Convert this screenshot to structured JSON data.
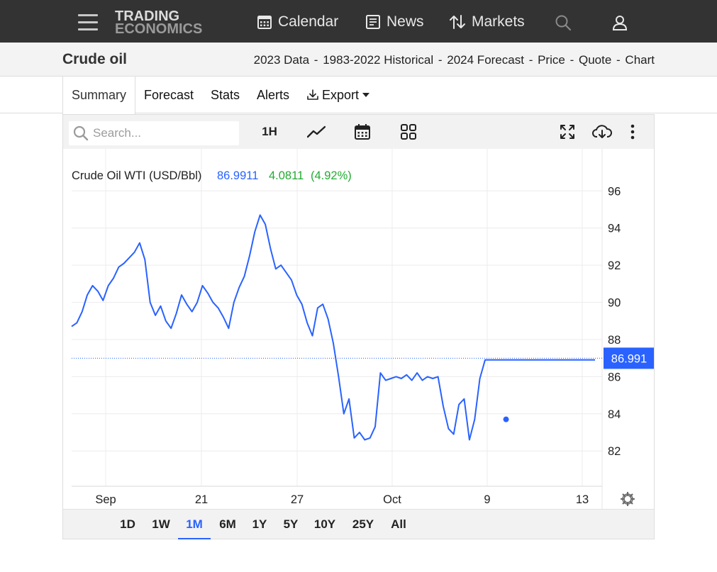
{
  "nav": {
    "logo_line1": "TRADING",
    "logo_line2": "ECONOMICS",
    "calendar": "Calendar",
    "news": "News",
    "markets": "Markets"
  },
  "title_bar": {
    "title": "Crude oil",
    "links": [
      "2023 Data",
      "1983-2022 Historical",
      "2024 Forecast",
      "Price",
      "Quote",
      "Chart"
    ],
    "separator": "-"
  },
  "tabs": [
    {
      "label": "Summary",
      "active": true
    },
    {
      "label": "Forecast"
    },
    {
      "label": "Stats"
    },
    {
      "label": "Alerts"
    },
    {
      "label": "Export"
    }
  ],
  "toolbar": {
    "search_placeholder": "Search...",
    "interval": "1H"
  },
  "legend": {
    "name": "Crude Oil WTI (USD/Bbl)",
    "last": "86.9911",
    "change": "4.0811",
    "change_pct": "(4.92%)"
  },
  "price_tag": "86.991",
  "ranges": [
    {
      "label": "1D"
    },
    {
      "label": "1W"
    },
    {
      "label": "1M",
      "active": true
    },
    {
      "label": "6M"
    },
    {
      "label": "1Y"
    },
    {
      "label": "5Y"
    },
    {
      "label": "10Y"
    },
    {
      "label": "25Y"
    },
    {
      "label": "All"
    }
  ],
  "colors": {
    "line": "#2962ff",
    "positive": "#22ab32",
    "navbar": "#333333",
    "accent": "#2962ff"
  },
  "chart_data": {
    "type": "line",
    "title": "Crude Oil WTI (USD/Bbl)",
    "x_ticks": [
      "Sep",
      "21",
      "27",
      "Oct",
      "9",
      "13"
    ],
    "y_ticks": [
      82,
      84,
      86,
      88,
      90,
      92,
      94,
      96
    ],
    "ylim": [
      80.1,
      97.5
    ],
    "last_value": 86.991,
    "grid": true,
    "series": [
      {
        "name": "Crude Oil WTI (USD/Bbl)",
        "x": [
          0,
          1,
          2,
          3,
          4,
          5,
          6,
          7,
          8,
          9,
          10,
          11,
          12,
          13,
          14,
          15,
          16,
          17,
          18,
          19,
          20,
          21,
          22,
          23,
          24,
          25,
          26,
          27,
          28,
          29,
          30,
          31,
          32,
          33,
          34,
          35,
          36,
          37,
          38,
          39,
          40,
          41,
          42,
          43,
          44,
          45,
          46,
          47,
          48,
          49,
          50,
          51,
          52,
          53,
          54,
          55,
          56,
          57,
          58,
          59,
          60,
          61,
          62,
          63,
          64,
          65,
          66,
          67,
          68,
          69,
          70,
          71,
          72,
          73,
          74,
          75,
          76,
          77,
          78,
          79,
          80,
          81,
          82,
          83,
          84,
          85,
          86,
          87,
          88,
          89,
          90,
          91,
          92,
          93,
          94,
          95,
          96,
          97,
          98,
          99,
          100
        ],
        "values": [
          88.7,
          88.9,
          89.5,
          90.4,
          90.9,
          90.6,
          90.1,
          90.9,
          91.3,
          91.9,
          92.1,
          92.4,
          92.7,
          93.2,
          92.3,
          90.0,
          89.3,
          89.8,
          89.0,
          88.6,
          89.4,
          90.4,
          89.9,
          89.5,
          90.0,
          90.9,
          90.5,
          90.0,
          89.7,
          89.2,
          88.6,
          90.0,
          90.8,
          91.4,
          92.5,
          93.8,
          94.7,
          94.2,
          92.9,
          91.8,
          92.0,
          91.6,
          91.2,
          90.4,
          89.9,
          88.9,
          88.2,
          89.7,
          89.9,
          89.1,
          87.8,
          86.0,
          84.0,
          84.8,
          82.7,
          83.0,
          82.6,
          82.7,
          83.3,
          86.2,
          85.8,
          85.9,
          86.0,
          85.9,
          86.1,
          85.8,
          86.2,
          85.8,
          86.0,
          85.9,
          86.0,
          84.4,
          83.2,
          82.9,
          84.5,
          84.8,
          82.6,
          83.7,
          85.9,
          86.9,
          86.9,
          86.9,
          86.9,
          86.9,
          86.9,
          86.9,
          86.9,
          86.9,
          86.9,
          86.9,
          86.9,
          86.9,
          86.9,
          86.9,
          86.9,
          86.9,
          86.9,
          86.9,
          86.9,
          86.9,
          86.9
        ]
      }
    ]
  }
}
